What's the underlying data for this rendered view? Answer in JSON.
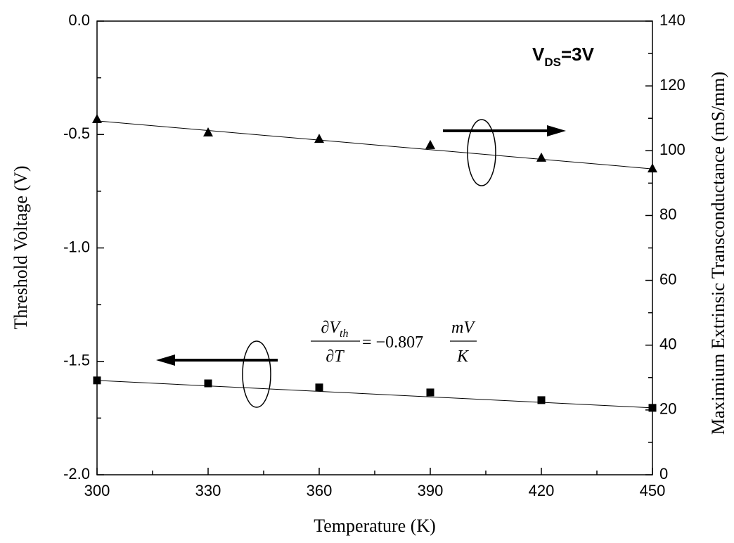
{
  "chart_data": {
    "type": "line",
    "x_label": "Temperature (K)",
    "y_label": "Threshold Voltage (V)",
    "y2_label": "Maximium Extrinsic Transconductance (mS/mm)",
    "xlim": [
      300,
      450
    ],
    "xticks": [
      300,
      330,
      360,
      390,
      420,
      450
    ],
    "ylim": [
      -2,
      0
    ],
    "yticks": [
      {
        "value": 0,
        "label": "0.0"
      },
      -0.5,
      {
        "value": -1,
        "label": "-1.0"
      },
      -1.5,
      {
        "value": -2,
        "label": "-2.0"
      }
    ],
    "y2lim": [
      0,
      140
    ],
    "y2ticks": [
      0,
      20,
      40,
      60,
      80,
      100,
      120,
      140
    ],
    "series": [
      {
        "marker": "square",
        "color": "#000000",
        "x": [
          300,
          330,
          360,
          390,
          420,
          450
        ],
        "values": [
          -1.584,
          -1.597,
          -1.615,
          -1.637,
          -1.671,
          -1.705
        ],
        "fit": {
          "x": [
            300,
            450
          ],
          "values": [
            -1.584,
            -1.705
          ]
        }
      },
      {
        "marker": "triangle",
        "color": "#000000",
        "axis": "y2",
        "x": [
          300,
          330,
          360,
          390,
          420,
          450
        ],
        "values": [
          109.6,
          105.5,
          103.5,
          101.6,
          97.7,
          94.4
        ],
        "fit": {
          "x": [
            300,
            450
          ],
          "values": [
            109.2,
            94.4
          ]
        }
      }
    ],
    "annotations": {
      "vds": {
        "main": "V",
        "sub": "DS",
        "rest": "=3V"
      },
      "equation": {
        "num": "∂V",
        "num_sub": "th",
        "den": "∂T",
        "middle": "= −0.807",
        "unit_num": "mV",
        "unit_den": "K"
      }
    }
  }
}
